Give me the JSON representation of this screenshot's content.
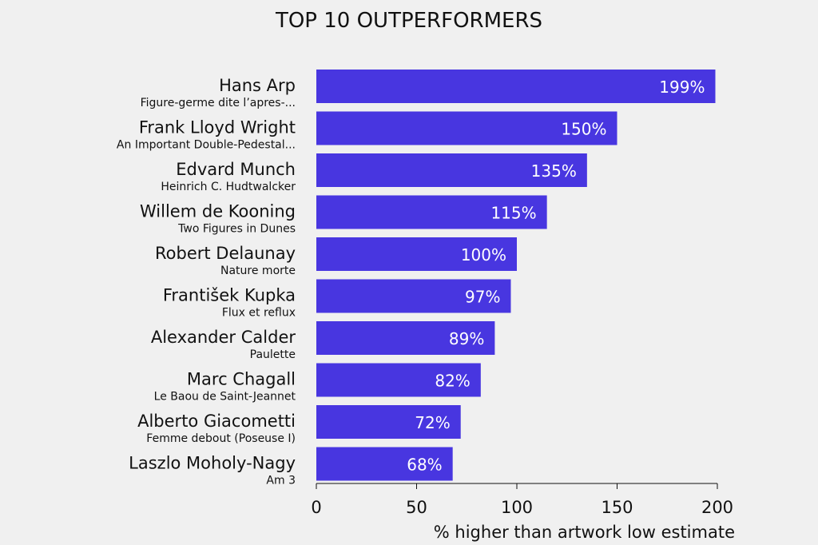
{
  "chart_data": {
    "type": "barh",
    "title": "TOP 10 OUTPERFORMERS",
    "categories": [
      "Hans Arp",
      "Frank Lloyd Wright",
      "Edvard Munch",
      "Willem de Kooning",
      "Robert Delaunay",
      "František Kupka",
      "Alexander Calder",
      "Marc Chagall",
      "Alberto Giacometti",
      "Laszlo Moholy-Nagy"
    ],
    "artworks": [
      "Figure-germe dite l’apres-...",
      "An Important Double-Pedestal...",
      "Heinrich C. Hudtwalcker",
      "Two Figures in Dunes",
      "Nature morte",
      "Flux et reflux",
      "Paulette",
      "Le Baou de Saint-Jeannet",
      "Femme debout (Poseuse I)",
      "Am 3"
    ],
    "values": [
      199,
      150,
      135,
      115,
      100,
      97,
      89,
      82,
      72,
      68
    ],
    "value_labels": [
      "199%",
      "150%",
      "135%",
      "115%",
      "100%",
      "97%",
      "89%",
      "82%",
      "72%",
      "68%"
    ],
    "color": "#4836e0",
    "xlim": [
      0,
      200
    ],
    "xticks": [
      0,
      50,
      100,
      150,
      200
    ],
    "xlabel": "% higher than artwork low estimate"
  }
}
